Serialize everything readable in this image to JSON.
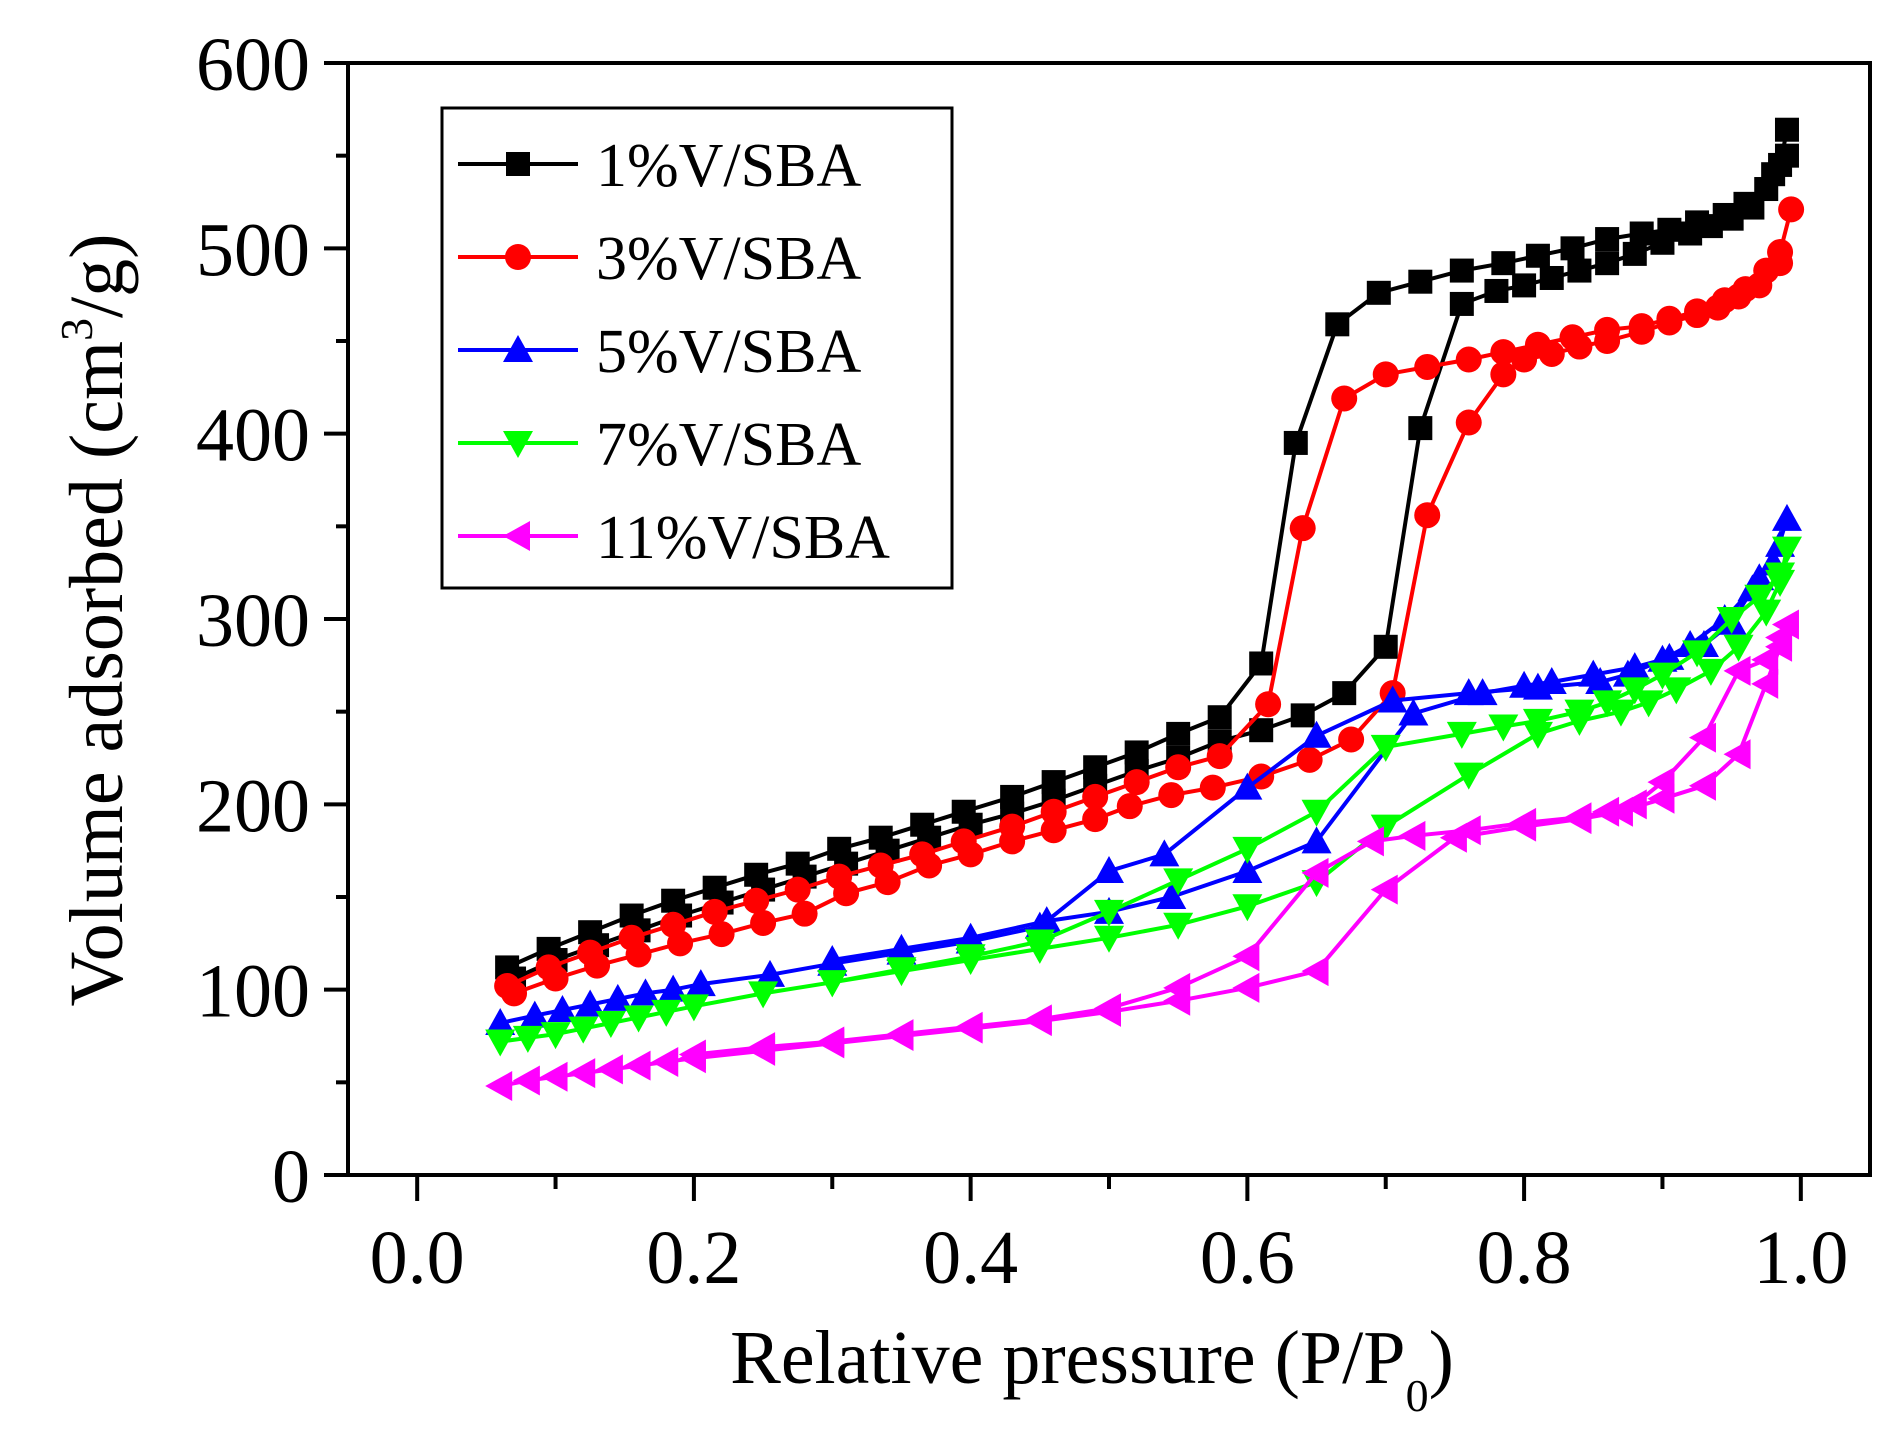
{
  "chart_data": {
    "type": "line",
    "xlabel_main": "Relative pressure (P/P",
    "xlabel_sub": "0",
    "xlabel_end": ")",
    "ylabel_main": "Volume adsorbed (cm",
    "ylabel_sup": "3",
    "ylabel_end": "/g)",
    "xlim": [
      -0.05,
      1.05
    ],
    "ylim": [
      0,
      600
    ],
    "x_ticks": [
      0.0,
      0.2,
      0.4,
      0.6,
      0.8,
      1.0
    ],
    "x_tick_labels": [
      "0.0",
      "0.2",
      "0.4",
      "0.6",
      "0.8",
      "1.0"
    ],
    "y_ticks": [
      0,
      100,
      200,
      300,
      400,
      500,
      600
    ],
    "y_tick_labels": [
      "0",
      "100",
      "200",
      "300",
      "400",
      "500",
      "600"
    ],
    "legend_position": "top-left",
    "series": [
      {
        "name": "1%V/SBA",
        "color": "#000000",
        "marker": "square",
        "adsorption": {
          "x": [
            0.065,
            0.095,
            0.125,
            0.155,
            0.185,
            0.215,
            0.245,
            0.275,
            0.305,
            0.335,
            0.365,
            0.395,
            0.43,
            0.46,
            0.49,
            0.52,
            0.55,
            0.58,
            0.61,
            0.635,
            0.665,
            0.695,
            0.725,
            0.755,
            0.785,
            0.81,
            0.835,
            0.86,
            0.885,
            0.905,
            0.925,
            0.945,
            0.96,
            0.975,
            0.985,
            0.99
          ],
          "y": [
            112,
            122,
            131,
            140,
            148,
            155,
            162,
            168,
            176,
            182,
            189,
            196,
            204,
            212,
            220,
            228,
            238,
            247,
            276,
            395,
            459,
            476,
            482,
            488,
            492,
            496,
            500,
            505,
            508,
            510,
            514,
            518,
            524,
            532,
            545,
            564
          ]
        },
        "desorption": {
          "x": [
            0.99,
            0.98,
            0.965,
            0.95,
            0.935,
            0.92,
            0.9,
            0.88,
            0.86,
            0.84,
            0.82,
            0.8,
            0.78,
            0.755,
            0.725,
            0.7,
            0.67,
            0.64,
            0.61,
            0.58,
            0.55,
            0.52,
            0.49,
            0.46,
            0.43,
            0.4,
            0.37,
            0.34,
            0.31,
            0.28,
            0.25,
            0.22,
            0.19,
            0.16,
            0.13,
            0.1,
            0.07
          ],
          "y": [
            550,
            540,
            522,
            516,
            512,
            508,
            503,
            497,
            492,
            488,
            484,
            480,
            477,
            470,
            403,
            285,
            260,
            248,
            240,
            234,
            225,
            218,
            210,
            202,
            195,
            189,
            182,
            175,
            168,
            161,
            154,
            147,
            140,
            132,
            124,
            116,
            106
          ]
        }
      },
      {
        "name": "3%V/SBA",
        "color": "#ff0000",
        "marker": "circle",
        "adsorption": {
          "x": [
            0.065,
            0.095,
            0.125,
            0.155,
            0.185,
            0.215,
            0.245,
            0.275,
            0.305,
            0.335,
            0.365,
            0.395,
            0.43,
            0.46,
            0.49,
            0.52,
            0.55,
            0.58,
            0.615,
            0.64,
            0.67,
            0.7,
            0.73,
            0.76,
            0.785,
            0.81,
            0.835,
            0.86,
            0.885,
            0.905,
            0.925,
            0.945,
            0.96,
            0.975,
            0.985,
            0.993
          ],
          "y": [
            102,
            112,
            120,
            128,
            135,
            142,
            148,
            154,
            161,
            167,
            173,
            180,
            188,
            196,
            204,
            212,
            220,
            226,
            254,
            349,
            419,
            432,
            436,
            440,
            444,
            448,
            452,
            456,
            458,
            462,
            466,
            472,
            478,
            488,
            498,
            521
          ]
        },
        "desorption": {
          "x": [
            0.985,
            0.97,
            0.955,
            0.94,
            0.925,
            0.905,
            0.885,
            0.86,
            0.84,
            0.82,
            0.8,
            0.785,
            0.76,
            0.73,
            0.705,
            0.675,
            0.645,
            0.61,
            0.575,
            0.545,
            0.515,
            0.49,
            0.46,
            0.43,
            0.4,
            0.37,
            0.34,
            0.31,
            0.28,
            0.25,
            0.22,
            0.19,
            0.16,
            0.13,
            0.1,
            0.07
          ],
          "y": [
            492,
            480,
            474,
            468,
            464,
            460,
            455,
            450,
            447,
            443,
            440,
            432,
            406,
            356,
            260,
            235,
            224,
            215,
            209,
            205,
            199,
            192,
            186,
            180,
            173,
            167,
            158,
            152,
            141,
            136,
            130,
            125,
            119,
            113,
            106,
            98
          ]
        }
      },
      {
        "name": "5%V/SBA",
        "color": "#0000ff",
        "marker": "triangle-up",
        "adsorption": {
          "x": [
            0.06,
            0.085,
            0.105,
            0.125,
            0.145,
            0.165,
            0.185,
            0.205,
            0.255,
            0.3,
            0.35,
            0.4,
            0.45,
            0.5,
            0.54,
            0.6,
            0.65,
            0.705,
            0.76,
            0.81,
            0.855,
            0.875,
            0.9,
            0.92,
            0.945,
            0.965,
            0.98,
            0.99
          ],
          "y": [
            82,
            86,
            89,
            92,
            95,
            98,
            100,
            103,
            108,
            114,
            120,
            126,
            134,
            164,
            173,
            209,
            237,
            256,
            260,
            263,
            266,
            270,
            278,
            286,
            300,
            316,
            330,
            354
          ]
        },
        "desorption": {
          "x": [
            0.985,
            0.97,
            0.95,
            0.93,
            0.905,
            0.88,
            0.85,
            0.82,
            0.8,
            0.77,
            0.72,
            0.65,
            0.6,
            0.545,
            0.5,
            0.455,
            0.4,
            0.35,
            0.3
          ],
          "y": [
            340,
            322,
            298,
            286,
            279,
            274,
            270,
            266,
            264,
            260,
            249,
            180,
            164,
            150,
            142,
            137,
            128,
            122,
            116
          ]
        }
      },
      {
        "name": "7%V/SBA",
        "color": "#00ff00",
        "marker": "triangle-down",
        "adsorption": {
          "x": [
            0.06,
            0.08,
            0.1,
            0.12,
            0.14,
            0.16,
            0.18,
            0.2,
            0.25,
            0.3,
            0.35,
            0.4,
            0.45,
            0.5,
            0.55,
            0.6,
            0.65,
            0.7,
            0.76,
            0.81,
            0.84,
            0.87,
            0.89,
            0.91,
            0.935,
            0.955,
            0.975,
            0.985,
            0.99
          ],
          "y": [
            72,
            74,
            76,
            79,
            82,
            85,
            88,
            91,
            98,
            104,
            110,
            116,
            122,
            128,
            135,
            145,
            158,
            188,
            216,
            238,
            245,
            250,
            255,
            262,
            272,
            285,
            304,
            320,
            338
          ]
        },
        "desorption": {
          "x": [
            0.985,
            0.97,
            0.95,
            0.925,
            0.9,
            0.88,
            0.86,
            0.84,
            0.81,
            0.785,
            0.755,
            0.7,
            0.65,
            0.6,
            0.55,
            0.5,
            0.45,
            0.4,
            0.35,
            0.3
          ],
          "y": [
            324,
            312,
            300,
            282,
            270,
            262,
            255,
            250,
            245,
            242,
            238,
            231,
            196,
            176,
            159,
            142,
            126,
            118,
            111,
            104
          ]
        }
      },
      {
        "name": "11%V/SBA",
        "color": "#ff00ff",
        "marker": "triangle-left",
        "adsorption": {
          "x": [
            0.06,
            0.08,
            0.1,
            0.12,
            0.14,
            0.16,
            0.18,
            0.2,
            0.25,
            0.3,
            0.35,
            0.4,
            0.45,
            0.5,
            0.55,
            0.6,
            0.65,
            0.7,
            0.75,
            0.8,
            0.84,
            0.87,
            0.9,
            0.93,
            0.955,
            0.975,
            0.985,
            0.99
          ],
          "y": [
            48,
            51,
            53,
            55,
            57,
            59,
            61,
            63,
            67,
            71,
            75,
            79,
            83,
            88,
            94,
            101,
            110,
            154,
            182,
            188,
            192,
            196,
            203,
            210,
            227,
            265,
            285,
            297
          ]
        },
        "desorption": {
          "x": [
            0.985,
            0.975,
            0.955,
            0.93,
            0.9,
            0.88,
            0.86,
            0.84,
            0.8,
            0.76,
            0.72,
            0.69,
            0.65,
            0.6,
            0.55,
            0.5,
            0.45,
            0.4,
            0.35,
            0.3,
            0.25,
            0.2
          ],
          "y": [
            290,
            278,
            272,
            236,
            212,
            200,
            196,
            193,
            190,
            186,
            183,
            180,
            163,
            118,
            101,
            90,
            84,
            80,
            76,
            72,
            69,
            65
          ]
        }
      }
    ]
  }
}
